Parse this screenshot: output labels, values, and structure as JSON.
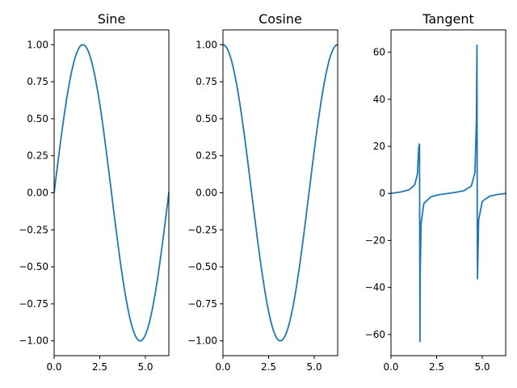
{
  "chart_data": [
    {
      "type": "line",
      "title": "Sine",
      "function": "sin",
      "xlim": [
        0,
        6.2832
      ],
      "ylim": [
        -1.1,
        1.1
      ],
      "xticks": [
        0.0,
        2.5,
        5.0
      ],
      "xtick_labels": [
        "0.0",
        "2.5",
        "5.0"
      ],
      "yticks": [
        -1.0,
        -0.75,
        -0.5,
        -0.25,
        0.0,
        0.25,
        0.5,
        0.75,
        1.0
      ],
      "ytick_labels": [
        "−1.00",
        "−0.75",
        "−0.50",
        "−0.25",
        "0.00",
        "0.25",
        "0.50",
        "0.75",
        "1.00"
      ],
      "x": [
        0.0,
        0.2618,
        0.5236,
        0.7854,
        1.0472,
        1.309,
        1.5708,
        1.8326,
        2.0944,
        2.3562,
        2.618,
        2.8798,
        3.1416,
        3.4034,
        3.6652,
        3.927,
        4.1888,
        4.4506,
        4.7124,
        4.9742,
        5.236,
        5.4978,
        5.7596,
        6.0214,
        6.2832
      ],
      "y": [
        0.0,
        0.2588,
        0.5,
        0.7071,
        0.866,
        0.9659,
        1.0,
        0.9659,
        0.866,
        0.7071,
        0.5,
        0.2588,
        0.0,
        -0.2588,
        -0.5,
        -0.7071,
        -0.866,
        -0.9659,
        -1.0,
        -0.9659,
        -0.866,
        -0.7071,
        -0.5,
        -0.2588,
        0.0
      ],
      "color": "#1f77b4"
    },
    {
      "type": "line",
      "title": "Cosine",
      "function": "cos",
      "xlim": [
        0,
        6.2832
      ],
      "ylim": [
        -1.1,
        1.1
      ],
      "xticks": [
        0.0,
        2.5,
        5.0
      ],
      "xtick_labels": [
        "0.0",
        "2.5",
        "5.0"
      ],
      "yticks": [
        -1.0,
        -0.75,
        -0.5,
        -0.25,
        0.0,
        0.25,
        0.5,
        0.75,
        1.0
      ],
      "ytick_labels": [
        "−1.00",
        "−0.75",
        "−0.50",
        "−0.25",
        "0.00",
        "0.25",
        "0.50",
        "0.75",
        "1.00"
      ],
      "x": [
        0.0,
        0.2618,
        0.5236,
        0.7854,
        1.0472,
        1.309,
        1.5708,
        1.8326,
        2.0944,
        2.3562,
        2.618,
        2.8798,
        3.1416,
        3.4034,
        3.6652,
        3.927,
        4.1888,
        4.4506,
        4.7124,
        4.9742,
        5.236,
        5.4978,
        5.7596,
        6.0214,
        6.2832
      ],
      "y": [
        1.0,
        0.9659,
        0.866,
        0.7071,
        0.5,
        0.2588,
        0.0,
        -0.2588,
        -0.5,
        -0.7071,
        -0.866,
        -0.9659,
        -1.0,
        -0.9659,
        -0.866,
        -0.7071,
        -0.5,
        -0.2588,
        0.0,
        0.2588,
        0.5,
        0.7071,
        0.866,
        0.9659,
        1.0
      ],
      "color": "#1f77b4"
    },
    {
      "type": "line",
      "title": "Tangent",
      "function": "tan",
      "xlim": [
        0,
        6.2832
      ],
      "ylim": [
        -69,
        69.5
      ],
      "xticks": [
        0.0,
        2.5,
        5.0
      ],
      "xtick_labels": [
        "0.0",
        "2.5",
        "5.0"
      ],
      "yticks": [
        -60,
        -40,
        -20,
        0,
        20,
        40,
        60
      ],
      "ytick_labels": [
        "−60",
        "−40",
        "−20",
        "0",
        "20",
        "40",
        "60"
      ],
      "x": [
        0.0,
        0.5,
        1.0,
        1.3,
        1.45,
        1.52,
        1.5631,
        1.5869,
        1.6,
        1.65,
        1.8,
        2.2,
        2.7,
        3.1416,
        3.6,
        4.0,
        4.4,
        4.6,
        4.68,
        4.7091,
        4.7278,
        4.74,
        4.8,
        5.0,
        5.4,
        5.8,
        6.2832
      ],
      "y": [
        0.0,
        0.546,
        1.557,
        3.602,
        8.238,
        19.67,
        21.0,
        -63.0,
        -34.23,
        -12.6,
        -4.286,
        -1.374,
        -0.473,
        0.0,
        0.493,
        1.158,
        3.096,
        8.86,
        31.5,
        63.0,
        -21.0,
        -36.3,
        -11.4,
        -3.381,
        -1.22,
        -0.533,
        0.0
      ],
      "color": "#1f77b4"
    }
  ]
}
